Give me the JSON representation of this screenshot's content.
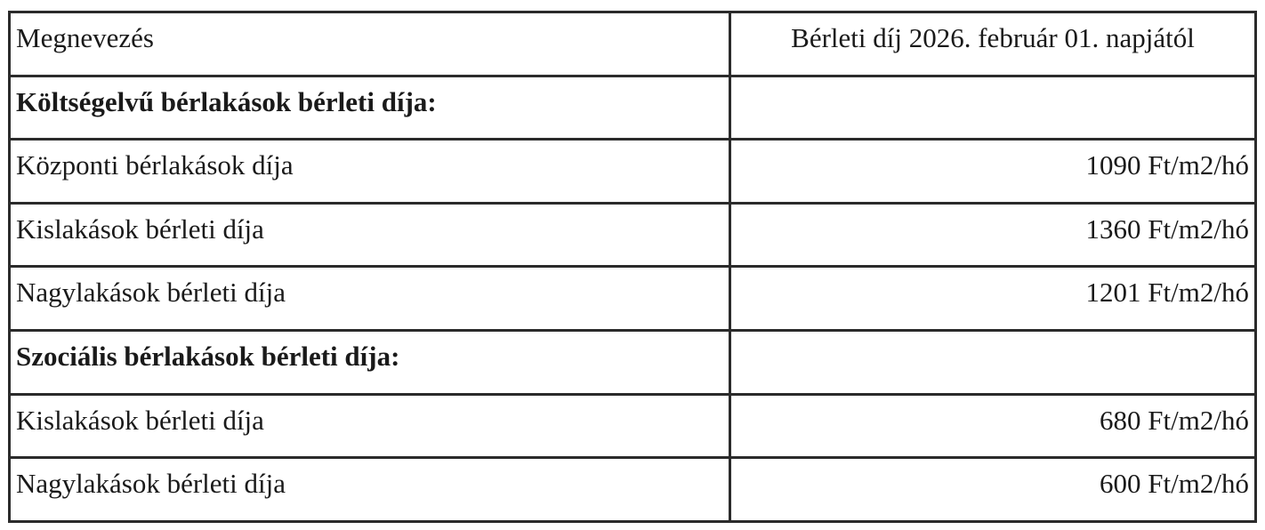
{
  "table": {
    "headers": [
      "Megnevezés",
      "Bérleti díj 2026. február 01. napjától"
    ],
    "rows": [
      {
        "type": "section",
        "label": "Költségelvű  bérlakások bérleti díja:",
        "value": ""
      },
      {
        "type": "item",
        "label": "Központi bérlakások díja",
        "value": "1090 Ft/m2/hó"
      },
      {
        "type": "item",
        "label": "Kislakások bérleti díja",
        "value": "1360 Ft/m2/hó"
      },
      {
        "type": "item",
        "label": "Nagylakások bérleti díja",
        "value": "1201 Ft/m2/hó"
      },
      {
        "type": "section",
        "label": "Szociális bérlakások bérleti díja:",
        "value": ""
      },
      {
        "type": "item",
        "label": "Kislakások bérleti díja",
        "value": "680 Ft/m2/hó"
      },
      {
        "type": "item",
        "label": "Nagylakások bérleti díja",
        "value": "600 Ft/m2/hó"
      }
    ]
  }
}
